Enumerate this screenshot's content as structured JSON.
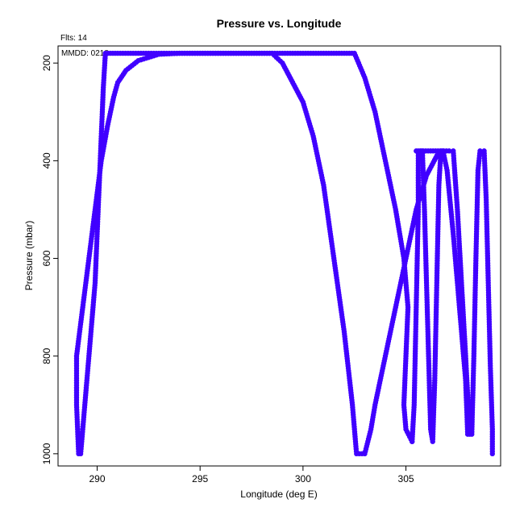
{
  "chart_data": {
    "type": "scatter",
    "title": "Pressure vs. Longitude",
    "xlabel": "Longitude (deg E)",
    "ylabel": "Pressure (mbar)",
    "xlim": [
      288.1,
      309.6
    ],
    "ylim": [
      1025,
      165
    ],
    "y_reversed": true,
    "grid": false,
    "x_ticks": [
      290,
      295,
      300,
      305
    ],
    "x_tick_labels": [
      "290",
      "295",
      "300",
      "305"
    ],
    "y_ticks": [
      200,
      400,
      600,
      800,
      1000
    ],
    "y_tick_labels": [
      "200",
      "400",
      "600",
      "800",
      "1000"
    ],
    "annotations": [
      "Flts: 14",
      "MMDD: 0218"
    ],
    "marker_color": "#4000ff",
    "series": [
      {
        "points": [
          [
            289.2,
            1000
          ],
          [
            289.3,
            950
          ],
          [
            289.5,
            850
          ],
          [
            289.7,
            750
          ],
          [
            289.9,
            650
          ],
          [
            290.0,
            550
          ],
          [
            290.1,
            450
          ],
          [
            290.2,
            350
          ],
          [
            290.3,
            250
          ],
          [
            290.4,
            180
          ],
          [
            291.0,
            180
          ],
          [
            292.0,
            180
          ],
          [
            293.0,
            180
          ],
          [
            294.0,
            180
          ],
          [
            295.0,
            180
          ],
          [
            296.0,
            180
          ],
          [
            297.0,
            180
          ],
          [
            298.0,
            180
          ],
          [
            299.0,
            180
          ],
          [
            300.0,
            180
          ],
          [
            301.0,
            180
          ],
          [
            302.0,
            180
          ],
          [
            302.5,
            180
          ],
          [
            303.0,
            230
          ],
          [
            303.5,
            300
          ],
          [
            304.0,
            400
          ],
          [
            304.5,
            500
          ],
          [
            304.9,
            600
          ],
          [
            305.1,
            700
          ],
          [
            305.0,
            800
          ],
          [
            304.9,
            900
          ],
          [
            305.0,
            950
          ],
          [
            305.3,
            975
          ]
        ]
      },
      {
        "points": [
          [
            289.1,
            1000
          ],
          [
            289.0,
            900
          ],
          [
            289.0,
            800
          ],
          [
            289.3,
            700
          ],
          [
            289.6,
            600
          ],
          [
            289.9,
            500
          ],
          [
            290.2,
            400
          ],
          [
            290.5,
            330
          ],
          [
            290.8,
            270
          ],
          [
            291.0,
            240
          ],
          [
            291.4,
            215
          ],
          [
            292.0,
            195
          ],
          [
            293.0,
            182
          ],
          [
            294.0,
            180
          ],
          [
            295.0,
            180
          ],
          [
            296.0,
            180
          ],
          [
            297.0,
            180
          ],
          [
            298.0,
            180
          ],
          [
            298.5,
            180
          ],
          [
            299.0,
            200
          ],
          [
            299.5,
            240
          ],
          [
            300.0,
            280
          ],
          [
            300.5,
            350
          ],
          [
            301.0,
            450
          ],
          [
            301.5,
            600
          ],
          [
            302.0,
            750
          ],
          [
            302.4,
            900
          ],
          [
            302.6,
            1000
          ],
          [
            303.0,
            1000
          ],
          [
            303.3,
            950
          ],
          [
            303.5,
            900
          ],
          [
            304.0,
            800
          ],
          [
            304.5,
            700
          ],
          [
            305.0,
            600
          ],
          [
            305.5,
            500
          ],
          [
            306.0,
            430
          ],
          [
            306.5,
            390
          ],
          [
            306.8,
            380
          ]
        ]
      },
      {
        "points": [
          [
            305.5,
            380
          ],
          [
            305.7,
            380
          ],
          [
            305.8,
            380
          ],
          [
            305.9,
            500
          ],
          [
            306.0,
            650
          ],
          [
            306.1,
            800
          ],
          [
            306.2,
            950
          ],
          [
            306.3,
            975
          ],
          [
            306.4,
            850
          ],
          [
            306.5,
            650
          ],
          [
            306.6,
            450
          ],
          [
            306.7,
            380
          ],
          [
            307.1,
            380
          ],
          [
            307.3,
            380
          ],
          [
            307.5,
            500
          ],
          [
            307.7,
            650
          ],
          [
            307.9,
            800
          ],
          [
            308.1,
            960
          ],
          [
            308.2,
            960
          ],
          [
            308.3,
            800
          ],
          [
            308.4,
            600
          ],
          [
            308.5,
            420
          ],
          [
            308.6,
            380
          ],
          [
            308.8,
            380
          ],
          [
            308.9,
            480
          ],
          [
            309.0,
            650
          ],
          [
            309.1,
            820
          ],
          [
            309.2,
            950
          ],
          [
            309.2,
            1000
          ]
        ]
      },
      {
        "points": [
          [
            305.3,
            975
          ],
          [
            305.4,
            900
          ],
          [
            305.5,
            700
          ],
          [
            305.6,
            500
          ],
          [
            305.6,
            380
          ],
          [
            306.8,
            380
          ],
          [
            307.0,
            420
          ],
          [
            307.3,
            550
          ],
          [
            307.6,
            700
          ],
          [
            307.9,
            850
          ],
          [
            308.0,
            960
          ]
        ]
      }
    ]
  }
}
